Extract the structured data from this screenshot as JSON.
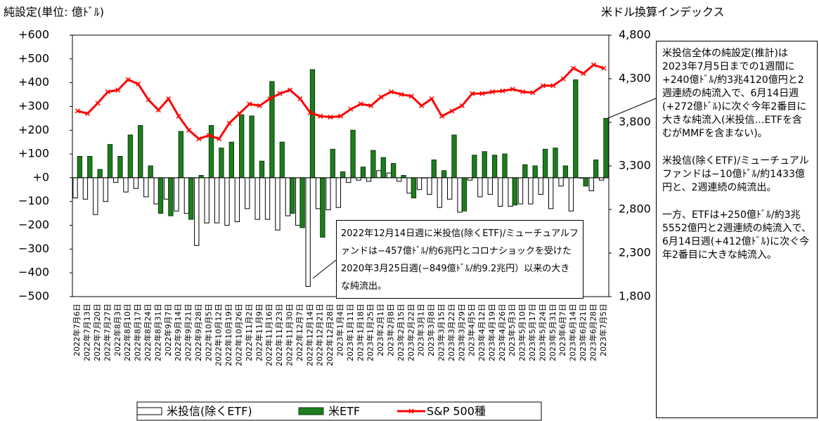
{
  "chart_data": {
    "type": "bar_line",
    "title": "純設定(単位: 億ﾄﾞﾙ)",
    "y2_title": "米ドル換算インデックス",
    "categories": [
      "2022年7月6日",
      "2022年7月13日",
      "2022年7月20日",
      "2022年7月27日",
      "2022年8月3日",
      "2022年8月10日",
      "2022年8月17日",
      "2022年8月24日",
      "2022年8月31日",
      "2022年9月7日",
      "2022年9月14日",
      "2022年9月21日",
      "2022年9月28日",
      "2022年10月5日",
      "2022年10月12日",
      "2022年10月19日",
      "2022年10月26日",
      "2022年11月2日",
      "2022年11月9日",
      "2022年11月16日",
      "2022年11月23日",
      "2022年11月30日",
      "2022年12月7日",
      "2022年12月14日",
      "2022年12月21日",
      "2022年12月28日",
      "2023年1月4日",
      "2023年1月11日",
      "2023年1月18日",
      "2023年1月25日",
      "2023年2月1日",
      "2023年2月8日",
      "2023年2月15日",
      "2023年2月22日",
      "2023年3月1日",
      "2023年3月8日",
      "2023年3月15日",
      "2023年3月22日",
      "2023年3月29日",
      "2023年4月5日",
      "2023年4月12日",
      "2023年4月19日",
      "2023年4月26日",
      "2023年5月3日",
      "2023年5月10日",
      "2023年5月17日",
      "2023年5月24日",
      "2023年5月31日",
      "2023年6月7日",
      "2023年6月14日",
      "2023年6月21日",
      "2023年6月28日",
      "2023年7月5日"
    ],
    "series": [
      {
        "name": "米投信(除くETF)",
        "kind": "bar",
        "color": "#ffffff",
        "stroke": "#000000",
        "values": [
          -85,
          -90,
          -155,
          -100,
          -20,
          -60,
          -45,
          -80,
          -110,
          -90,
          -140,
          -150,
          -285,
          -190,
          -190,
          -200,
          -185,
          -130,
          -175,
          -175,
          -220,
          -160,
          -200,
          -457,
          -130,
          -135,
          -125,
          -20,
          -10,
          -15,
          30,
          20,
          -15,
          -65,
          -50,
          -70,
          -125,
          -90,
          -145,
          -10,
          -80,
          -70,
          -120,
          -120,
          -110,
          -110,
          -70,
          -130,
          -35,
          -140,
          0,
          -55,
          -10
        ]
      },
      {
        "name": "米ETF",
        "kind": "bar",
        "color": "#1e7d1e",
        "stroke": "#0a3d0a",
        "values": [
          90,
          90,
          35,
          140,
          90,
          180,
          220,
          50,
          -150,
          -160,
          195,
          -175,
          10,
          220,
          125,
          150,
          265,
          260,
          70,
          405,
          150,
          -150,
          -210,
          455,
          -250,
          120,
          25,
          200,
          45,
          115,
          85,
          60,
          10,
          -85,
          0,
          75,
          30,
          180,
          -140,
          95,
          110,
          95,
          100,
          -115,
          55,
          50,
          120,
          125,
          50,
          412,
          -35,
          75,
          250
        ]
      },
      {
        "name": "S&P 500種",
        "kind": "line",
        "axis": "y2",
        "color": "#ff0000",
        "values": [
          3930,
          3900,
          4020,
          4150,
          4170,
          4290,
          4240,
          4060,
          3940,
          4070,
          3870,
          3710,
          3610,
          3650,
          3610,
          3790,
          3900,
          4010,
          3990,
          4070,
          4130,
          4170,
          4070,
          3910,
          3870,
          3860,
          3870,
          3950,
          4010,
          3990,
          4090,
          4150,
          4120,
          4100,
          3990,
          4070,
          3870,
          3930,
          3990,
          4130,
          4130,
          4150,
          4160,
          4180,
          4150,
          4140,
          4220,
          4220,
          4300,
          4420,
          4360,
          4460,
          4420
        ]
      }
    ],
    "ylim": [
      -500,
      600
    ],
    "yticks": [
      {
        "value": -500,
        "label": "−500"
      },
      {
        "value": -400,
        "label": "−400"
      },
      {
        "value": -300,
        "label": "−300"
      },
      {
        "value": -200,
        "label": "−200"
      },
      {
        "value": -100,
        "label": "−100"
      },
      {
        "value": 0,
        "label": "+0"
      },
      {
        "value": 100,
        "label": "+100"
      },
      {
        "value": 200,
        "label": "+200"
      },
      {
        "value": 300,
        "label": "+300"
      },
      {
        "value": 400,
        "label": "+400"
      },
      {
        "value": 500,
        "label": "+500"
      },
      {
        "value": 600,
        "label": "+600"
      }
    ],
    "y2lim": [
      1800,
      4800
    ],
    "y2ticks": [
      {
        "value": 1800,
        "label": "1,800"
      },
      {
        "value": 2300,
        "label": "2,300"
      },
      {
        "value": 2800,
        "label": "2,800"
      },
      {
        "value": 3300,
        "label": "3,300"
      },
      {
        "value": 3800,
        "label": "3,800"
      },
      {
        "value": 4300,
        "label": "4,300"
      },
      {
        "value": 4800,
        "label": "4,800"
      }
    ],
    "negative_tick_color": "#ff0000",
    "annotations": [
      "2022年12月14日週に米投信(除くETF)/ミューチュアルファンドは−457億ﾄﾞﾙ/約6兆円とコロナショックを受けた2020年3月25日週(−849億ﾄﾞﾙ/約9.2兆円）以来の大きな純流出。"
    ],
    "side_notes": [
      "米投信全体の純設定(推計)は2023年7月5日までの1週間に+240億ﾄﾞﾙ/約3兆4120億円と2週連続の純流入で、6月14日週(+272億ﾄﾞﾙ)に次ぐ今年2番目に大きな純流入(米投信…ETFを含むがMMFを含まない)。",
      "米投信(除くETF)/ミューチュアルファンドは−10億ﾄﾞﾙ/約1433億円と、2週連続の純流出。",
      "一方、ETFは+250億ﾄﾞﾙ/約3兆5552億円と2週連続の純流入で、6月14日週(+412億ﾄﾞﾙ)に次ぐ今年2番目に大きな純流入。"
    ]
  }
}
